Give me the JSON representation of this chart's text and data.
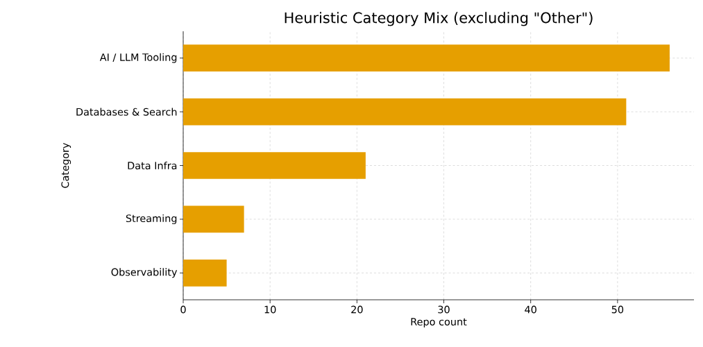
{
  "chart_data": {
    "type": "bar",
    "orientation": "horizontal",
    "title": "Heuristic Category Mix (excluding \"Other\")",
    "xlabel": "Repo count",
    "ylabel": "Category",
    "categories": [
      "AI / LLM Tooling",
      "Databases & Search",
      "Data Infra",
      "Streaming",
      "Observability"
    ],
    "values": [
      56,
      51,
      21,
      7,
      5
    ],
    "color": "#e69f00",
    "xlim": [
      0,
      58.8
    ],
    "xticks": [
      0,
      10,
      20,
      30,
      40,
      50
    ],
    "grid": true
  }
}
